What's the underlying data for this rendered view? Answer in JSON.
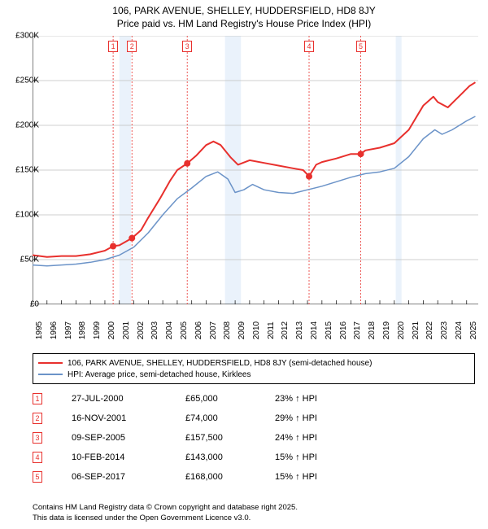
{
  "title": {
    "line1": "106, PARK AVENUE, SHELLEY, HUDDERSFIELD, HD8 8JY",
    "line2": "Price paid vs. HM Land Registry's House Price Index (HPI)"
  },
  "chart": {
    "type": "line",
    "background_color": "#ffffff",
    "grid_color": "#bfbfbf",
    "axis_color": "#000000",
    "ylim": [
      0,
      300000
    ],
    "ytick_step": 50000,
    "ytick_labels": [
      "£0",
      "£50K",
      "£100K",
      "£150K",
      "£200K",
      "£250K",
      "£300K"
    ],
    "xlim": [
      1995,
      2025.8
    ],
    "xtick_step": 1,
    "xtick_years": [
      1995,
      1996,
      1997,
      1998,
      1999,
      2000,
      2001,
      2002,
      2003,
      2004,
      2005,
      2006,
      2007,
      2008,
      2009,
      2010,
      2011,
      2012,
      2013,
      2014,
      2015,
      2016,
      2017,
      2018,
      2019,
      2020,
      2021,
      2022,
      2023,
      2024,
      2025
    ],
    "shade_color": "#eaf2fb",
    "shade_ranges": [
      [
        2001.0,
        2001.8
      ],
      [
        2008.3,
        2009.4
      ],
      [
        2020.1,
        2020.5
      ]
    ],
    "series": [
      {
        "name": "price_paid",
        "label": "106, PARK AVENUE, SHELLEY, HUDDERSFIELD, HD8 8JY (semi-detached house)",
        "color": "#e8302d",
        "line_width": 2,
        "points": [
          [
            1995.0,
            55000
          ],
          [
            1996.0,
            53000
          ],
          [
            1997.0,
            54000
          ],
          [
            1998.0,
            54000
          ],
          [
            1999.0,
            56000
          ],
          [
            2000.0,
            60000
          ],
          [
            2000.57,
            65000
          ],
          [
            2001.0,
            66000
          ],
          [
            2001.87,
            74000
          ],
          [
            2002.5,
            83000
          ],
          [
            2003.0,
            97000
          ],
          [
            2003.8,
            118000
          ],
          [
            2004.5,
            138000
          ],
          [
            2005.0,
            150000
          ],
          [
            2005.69,
            157500
          ],
          [
            2006.3,
            166000
          ],
          [
            2007.0,
            178000
          ],
          [
            2007.5,
            182000
          ],
          [
            2008.0,
            178000
          ],
          [
            2008.7,
            164000
          ],
          [
            2009.2,
            156000
          ],
          [
            2010.0,
            161000
          ],
          [
            2011.0,
            158000
          ],
          [
            2012.0,
            155000
          ],
          [
            2013.0,
            152000
          ],
          [
            2013.7,
            150000
          ],
          [
            2014.11,
            143000
          ],
          [
            2014.6,
            156000
          ],
          [
            2015.0,
            159000
          ],
          [
            2016.0,
            163000
          ],
          [
            2017.0,
            168000
          ],
          [
            2017.68,
            168000
          ],
          [
            2018.0,
            172000
          ],
          [
            2019.0,
            175000
          ],
          [
            2020.0,
            180000
          ],
          [
            2021.0,
            195000
          ],
          [
            2022.0,
            222000
          ],
          [
            2022.7,
            232000
          ],
          [
            2023.0,
            226000
          ],
          [
            2023.7,
            220000
          ],
          [
            2024.2,
            228000
          ],
          [
            2024.7,
            236000
          ],
          [
            2025.2,
            244000
          ],
          [
            2025.6,
            248000
          ]
        ]
      },
      {
        "name": "hpi",
        "label": "HPI: Average price, semi-detached house, Kirklees",
        "color": "#6b93c8",
        "line_width": 1.5,
        "points": [
          [
            1995.0,
            44000
          ],
          [
            1996.0,
            43000
          ],
          [
            1997.0,
            44000
          ],
          [
            1998.0,
            45000
          ],
          [
            1999.0,
            47000
          ],
          [
            2000.0,
            50000
          ],
          [
            2001.0,
            55000
          ],
          [
            2002.0,
            64000
          ],
          [
            2003.0,
            80000
          ],
          [
            2004.0,
            100000
          ],
          [
            2005.0,
            118000
          ],
          [
            2006.0,
            130000
          ],
          [
            2007.0,
            143000
          ],
          [
            2007.8,
            148000
          ],
          [
            2008.5,
            140000
          ],
          [
            2009.0,
            125000
          ],
          [
            2009.6,
            128000
          ],
          [
            2010.2,
            134000
          ],
          [
            2011.0,
            128000
          ],
          [
            2012.0,
            125000
          ],
          [
            2013.0,
            124000
          ],
          [
            2014.0,
            128000
          ],
          [
            2015.0,
            132000
          ],
          [
            2016.0,
            137000
          ],
          [
            2017.0,
            142000
          ],
          [
            2018.0,
            146000
          ],
          [
            2019.0,
            148000
          ],
          [
            2020.0,
            152000
          ],
          [
            2021.0,
            165000
          ],
          [
            2022.0,
            185000
          ],
          [
            2022.8,
            195000
          ],
          [
            2023.3,
            190000
          ],
          [
            2024.0,
            195000
          ],
          [
            2025.0,
            205000
          ],
          [
            2025.6,
            210000
          ]
        ]
      }
    ],
    "sale_markers": [
      {
        "idx": "1",
        "x": 2000.57,
        "y": 65000
      },
      {
        "idx": "2",
        "x": 2001.87,
        "y": 74000
      },
      {
        "idx": "3",
        "x": 2005.69,
        "y": 157500
      },
      {
        "idx": "4",
        "x": 2014.11,
        "y": 143000
      },
      {
        "idx": "5",
        "x": 2017.68,
        "y": 168000
      }
    ],
    "marker_dashed_color": "#e8302d",
    "marker_dot_radius": 4,
    "label_fontsize": 10,
    "title_fontsize": 12
  },
  "legend": {
    "items": [
      {
        "color": "#e8302d",
        "label": "106, PARK AVENUE, SHELLEY, HUDDERSFIELD, HD8 8JY (semi-detached house)",
        "width": 2
      },
      {
        "color": "#6b93c8",
        "label": "HPI: Average price, semi-detached house, Kirklees",
        "width": 1.5
      }
    ]
  },
  "sales_table": {
    "rows": [
      {
        "idx": "1",
        "date": "27-JUL-2000",
        "price": "£65,000",
        "diff": "23% ↑ HPI"
      },
      {
        "idx": "2",
        "date": "16-NOV-2001",
        "price": "£74,000",
        "diff": "29% ↑ HPI"
      },
      {
        "idx": "3",
        "date": "09-SEP-2005",
        "price": "£157,500",
        "diff": "24% ↑ HPI"
      },
      {
        "idx": "4",
        "date": "10-FEB-2014",
        "price": "£143,000",
        "diff": "15% ↑ HPI"
      },
      {
        "idx": "5",
        "date": "06-SEP-2017",
        "price": "£168,000",
        "diff": "15% ↑ HPI"
      }
    ]
  },
  "footer": {
    "line1": "Contains HM Land Registry data © Crown copyright and database right 2025.",
    "line2": "This data is licensed under the Open Government Licence v3.0."
  }
}
